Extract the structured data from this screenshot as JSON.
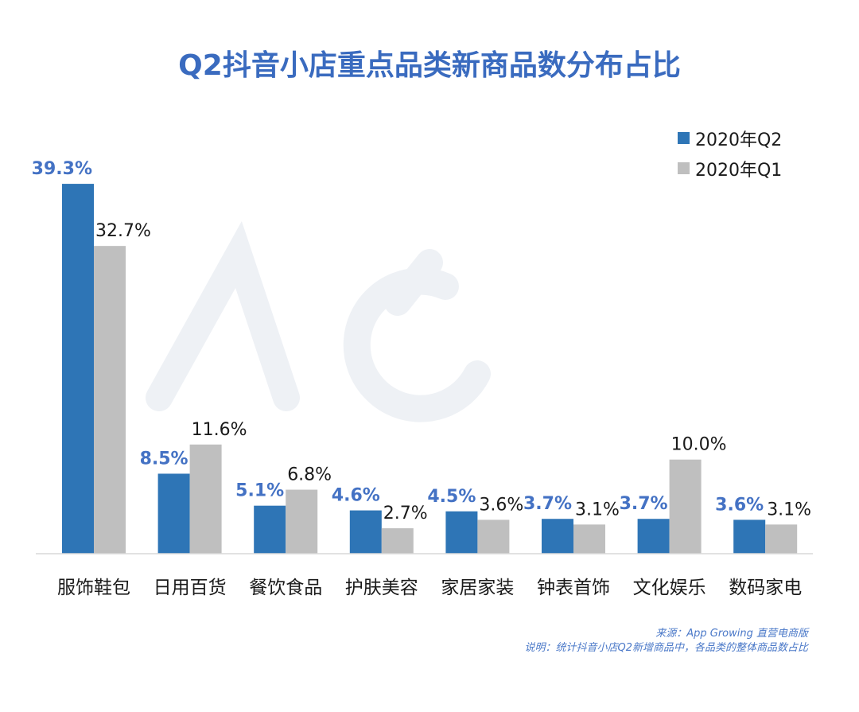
{
  "chart_data": {
    "type": "bar",
    "title": "Q2抖音小店重点品类新商品数分布占比",
    "categories": [
      "服饰鞋包",
      "日用百货",
      "餐饮食品",
      "护肤美容",
      "家居家装",
      "钟表首饰",
      "文化娱乐",
      "数码家电"
    ],
    "series": [
      {
        "name": "2020年Q2",
        "color": "#2e75b6",
        "label_color": "#4472c4",
        "values": [
          39.3,
          8.5,
          5.1,
          4.6,
          4.5,
          3.7,
          3.7,
          3.6
        ]
      },
      {
        "name": "2020年Q1",
        "color": "#bfbfbf",
        "label_color": "#1a1a1a",
        "values": [
          32.7,
          11.6,
          6.8,
          2.7,
          3.6,
          3.1,
          10.0,
          3.1
        ]
      }
    ],
    "value_suffix": "%",
    "legend_position": "top-right",
    "grid": false,
    "ylim": [
      0,
      40
    ],
    "title_color": "#3a6bbf"
  },
  "footer": {
    "source": "来源：App Growing 直营电商版",
    "note": "说明：统计抖音小店Q2新增商品中，各品类的整体商品数占比"
  },
  "watermark": "App Growing"
}
